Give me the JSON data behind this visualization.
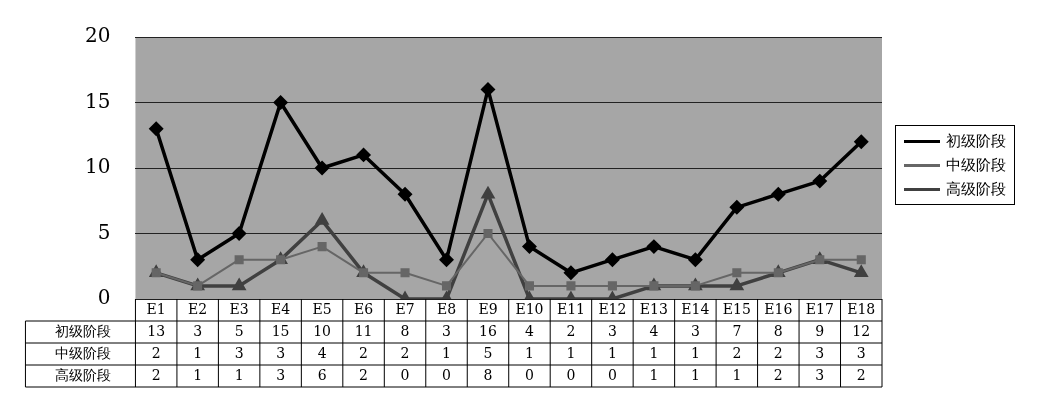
{
  "chart_data": {
    "type": "line",
    "categories": [
      "E1",
      "E2",
      "E3",
      "E4",
      "E5",
      "E6",
      "E7",
      "E8",
      "E9",
      "E10",
      "E11",
      "E12",
      "E13",
      "E14",
      "E15",
      "E16",
      "E17",
      "E18"
    ],
    "series": [
      {
        "name": "初级阶段",
        "color": "#000000",
        "marker": "diamond",
        "values": [
          13,
          3,
          5,
          15,
          10,
          11,
          8,
          3,
          16,
          4,
          2,
          3,
          4,
          3,
          7,
          8,
          9,
          12
        ]
      },
      {
        "name": "中级阶段",
        "color": "#666666",
        "marker": "square",
        "values": [
          2,
          1,
          3,
          3,
          4,
          2,
          2,
          1,
          5,
          1,
          1,
          1,
          1,
          1,
          2,
          2,
          3,
          3
        ]
      },
      {
        "name": "高级阶段",
        "color": "#404040",
        "marker": "triangle",
        "values": [
          2,
          1,
          1,
          3,
          6,
          2,
          0,
          0,
          8,
          0,
          0,
          0,
          1,
          1,
          1,
          2,
          3,
          2
        ]
      }
    ],
    "ylim": [
      0,
      20
    ],
    "yticks": [
      0,
      5,
      10,
      15,
      20
    ],
    "grid": "y",
    "legend": "right",
    "data_labels": true
  }
}
